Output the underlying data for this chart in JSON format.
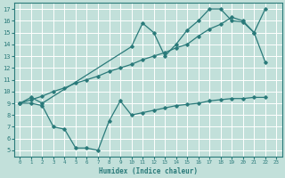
{
  "xlabel": "Humidex (Indice chaleur)",
  "bg_color": "#c2e0da",
  "grid_color": "#ffffff",
  "line_color": "#2a7a7a",
  "xlim": [
    -0.5,
    23.5
  ],
  "ylim": [
    4.5,
    17.5
  ],
  "xticks": [
    0,
    1,
    2,
    3,
    4,
    5,
    6,
    7,
    8,
    9,
    10,
    11,
    12,
    13,
    14,
    15,
    16,
    17,
    18,
    19,
    20,
    21,
    22,
    23
  ],
  "yticks": [
    5,
    6,
    7,
    8,
    9,
    10,
    11,
    12,
    13,
    14,
    15,
    16,
    17
  ],
  "line1_x": [
    0,
    1,
    2,
    10,
    11,
    12,
    13,
    14,
    15,
    16,
    17,
    18,
    19,
    20,
    21,
    22
  ],
  "line1_y": [
    9.0,
    9.5,
    9.0,
    13.8,
    15.8,
    15.0,
    13.0,
    14.0,
    15.2,
    16.0,
    17.0,
    17.0,
    16.0,
    15.9,
    15.0,
    12.5
  ],
  "line2_x": [
    0,
    1,
    2,
    3,
    4,
    5,
    6,
    7,
    8,
    9,
    10,
    11,
    12,
    13,
    14,
    15,
    16,
    17,
    18,
    19,
    20,
    21,
    22
  ],
  "line2_y": [
    9.0,
    9.3,
    9.6,
    10.0,
    10.3,
    10.7,
    11.0,
    11.3,
    11.7,
    12.0,
    12.3,
    12.7,
    13.0,
    13.3,
    13.7,
    14.0,
    14.7,
    15.3,
    15.7,
    16.3,
    16.0,
    15.0,
    17.0
  ],
  "line3_x": [
    0,
    1,
    2,
    3,
    4,
    5,
    6,
    7,
    8,
    9,
    10,
    11,
    12,
    13,
    14,
    15,
    16,
    17,
    18,
    19,
    20,
    21,
    22
  ],
  "line3_y": [
    9.0,
    9.0,
    8.8,
    7.0,
    6.8,
    5.2,
    5.2,
    5.0,
    7.5,
    9.2,
    8.0,
    8.2,
    8.4,
    8.6,
    8.8,
    8.9,
    9.0,
    9.2,
    9.3,
    9.4,
    9.4,
    9.5,
    9.5
  ]
}
